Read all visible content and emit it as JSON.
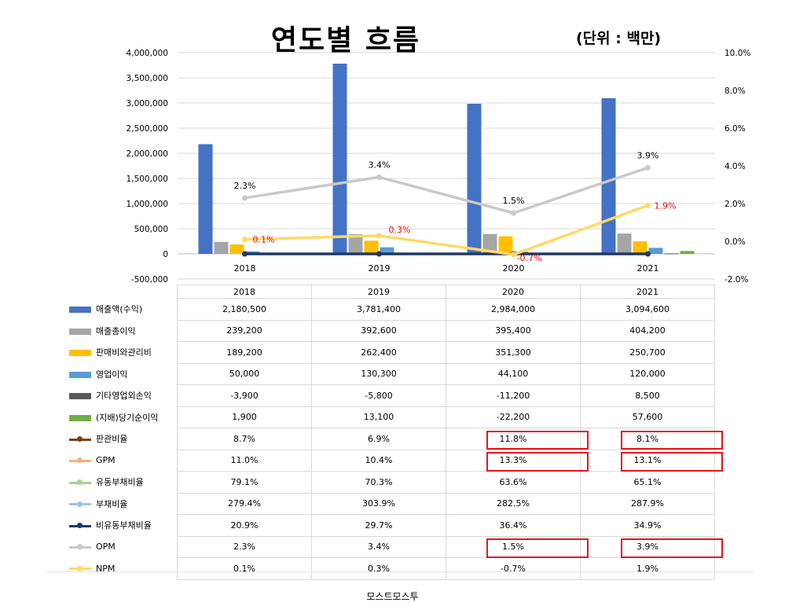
{
  "title": "연도별 흐름",
  "unit_label": "(단위 : 백만)",
  "footer": "모스트모스투",
  "chart_data": {
    "type": "bar",
    "categories": [
      "2018",
      "2019",
      "2020",
      "2021"
    ],
    "ylim": [
      -500000,
      4000000
    ],
    "y2lim": [
      -2.0,
      10.0
    ],
    "y_ticks": [
      "4,000,000",
      "3,500,000",
      "3,000,000",
      "2,500,000",
      "2,000,000",
      "1,500,000",
      "1,000,000",
      "500,000",
      "0",
      "-500,000"
    ],
    "y2_ticks": [
      "10.0%",
      "8.0%",
      "6.0%",
      "4.0%",
      "2.0%",
      "0.0%",
      "-2.0%"
    ],
    "grid": true,
    "bar_series": [
      {
        "name": "매출액(수익)",
        "color": "#4472c4",
        "values": [
          2180500,
          3781400,
          2984000,
          3094600
        ],
        "display": [
          "2,180,500",
          "3,781,400",
          "2,984,000",
          "3,094,600"
        ]
      },
      {
        "name": "매출총이익",
        "color": "#a5a5a5",
        "values": [
          239200,
          392600,
          395400,
          404200
        ],
        "display": [
          "239,200",
          "392,600",
          "395,400",
          "404,200"
        ]
      },
      {
        "name": "판매비와관리비",
        "color": "#ffc000",
        "values": [
          189200,
          262400,
          351300,
          250700
        ],
        "display": [
          "189,200",
          "262,400",
          "351,300",
          "250,700"
        ]
      },
      {
        "name": "영업이익",
        "color": "#5b9bd5",
        "values": [
          50000,
          130300,
          44100,
          120000
        ],
        "display": [
          "50,000",
          "130,300",
          "44,100",
          "120,000"
        ]
      },
      {
        "name": "기타영업외손익",
        "color": "#595959",
        "values": [
          -3900,
          -5800,
          -11200,
          8500
        ],
        "display": [
          "-3,900",
          "-5,800",
          "-11,200",
          "8,500"
        ]
      },
      {
        "name": "(지배)당기순이익",
        "color": "#70ad47",
        "values": [
          1900,
          13100,
          -22200,
          57600
        ],
        "display": [
          "1,900",
          "13,100",
          "-22,200",
          "57,600"
        ]
      }
    ],
    "line_series": [
      {
        "name": "판관비율",
        "color": "#843c0c",
        "values": [
          8.7,
          6.9,
          11.8,
          8.1
        ],
        "display": [
          "8.7%",
          "6.9%",
          "11.8%",
          "8.1%"
        ],
        "plotted": false
      },
      {
        "name": "GPM",
        "color": "#f4b183",
        "values": [
          11.0,
          10.4,
          13.3,
          13.1
        ],
        "display": [
          "11.0%",
          "10.4%",
          "13.3%",
          "13.1%"
        ],
        "plotted": false
      },
      {
        "name": "유동부채비율",
        "color": "#a9d18e",
        "values": [
          79.1,
          70.3,
          63.6,
          65.1
        ],
        "display": [
          "79.1%",
          "70.3%",
          "63.6%",
          "65.1%"
        ],
        "plotted": false
      },
      {
        "name": "부채비율",
        "color": "#9dc3e6",
        "values": [
          279.4,
          303.9,
          282.5,
          287.9
        ],
        "display": [
          "279.4%",
          "303.9%",
          "282.5%",
          "287.9%"
        ],
        "plotted": false
      },
      {
        "name": "비유동부채비율",
        "color": "#1f3864",
        "values": [
          20.9,
          29.7,
          36.4,
          34.9
        ],
        "display": [
          "20.9%",
          "29.7%",
          "36.4%",
          "34.9%"
        ],
        "plotted": true,
        "on_bar_axis": true
      },
      {
        "name": "OPM",
        "color": "#c9c9c9",
        "values": [
          2.3,
          3.4,
          1.5,
          3.9
        ],
        "display": [
          "2.3%",
          "3.4%",
          "1.5%",
          "3.9%"
        ],
        "plotted": true,
        "labels": [
          "2.3%",
          "3.4%",
          "1.5%",
          "3.9%"
        ],
        "label_color": "#000000"
      },
      {
        "name": "NPM",
        "color": "#ffd966",
        "values": [
          0.1,
          0.3,
          -0.7,
          1.9
        ],
        "display": [
          "0.1%",
          "0.3%",
          "-0.7%",
          "1.9%"
        ],
        "plotted": true,
        "labels": [
          "0.1%",
          "0.3%",
          "-0.7%",
          "1.9%"
        ],
        "label_color": "#ff0000"
      }
    ]
  },
  "highlights": [
    {
      "row": "판관비율",
      "years": [
        "2020",
        "2021"
      ]
    },
    {
      "row": "GPM",
      "years": [
        "2020",
        "2021"
      ]
    },
    {
      "row": "OPM",
      "years": [
        "2020",
        "2021"
      ]
    }
  ]
}
